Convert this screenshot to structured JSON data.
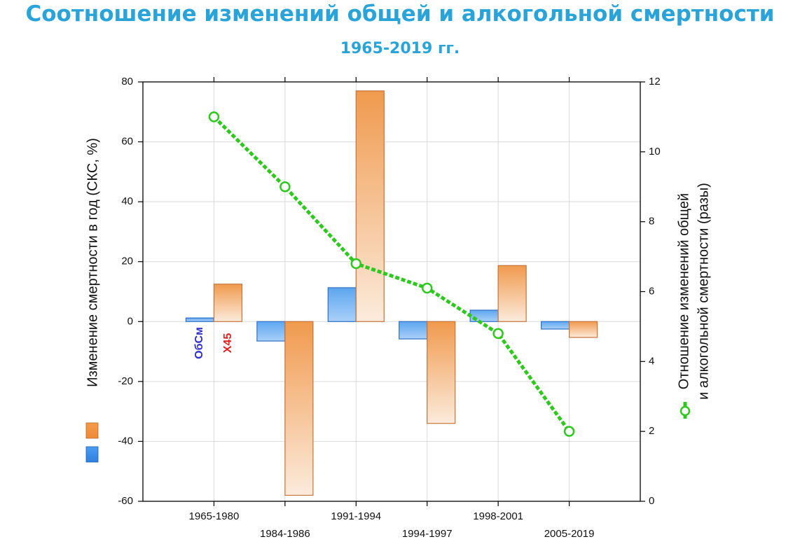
{
  "header": {
    "title": "Соотношение изменений общей и алкогольной смертности",
    "subtitle": "1965-2019 гг."
  },
  "chart_data": {
    "type": "bar",
    "categories": [
      "1965-1980",
      "1984-1986",
      "1991-1994",
      "1994-1997",
      "1998-2001",
      "2005-2019"
    ],
    "series": [
      {
        "name": "ОбСм",
        "axis": "left",
        "color": "#3f8ee8",
        "values": [
          1.2,
          -6.5,
          11.3,
          -5.8,
          3.8,
          -2.5
        ]
      },
      {
        "name": "Х45",
        "axis": "left",
        "color": "#e8924a",
        "values": [
          12.5,
          -58,
          77,
          -34,
          18.7,
          -5.3
        ]
      },
      {
        "name": "",
        "axis": "right",
        "type": "line",
        "color": "#2ec81e",
        "values": [
          11,
          9,
          6.8,
          6.1,
          4.8,
          2.0
        ]
      }
    ],
    "ylabel": "Изменение смертности в год (СКС, %)",
    "ylabel_right_lines": [
      "Отношение изменений общей",
      "и алкогольной смертности (разы)"
    ],
    "ylim": [
      -60,
      80
    ],
    "ylim_right": [
      0,
      12
    ],
    "yticks": [
      "80",
      "60",
      "40",
      "20",
      "0",
      "-20",
      "-40",
      "-60"
    ],
    "yticks_right": [
      "12",
      "10",
      "8",
      "6",
      "4",
      "2",
      "0"
    ],
    "bar_labels": {
      "obsm": "ОбСм",
      "x45": "Х45"
    },
    "grid": true
  }
}
